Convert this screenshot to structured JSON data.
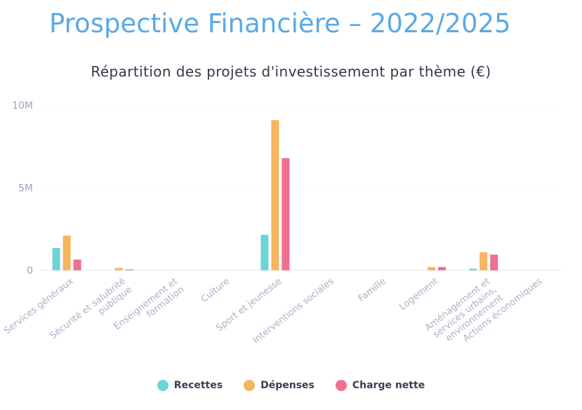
{
  "page": {
    "title": "Prospective Financière – 2022/2025"
  },
  "colors": {
    "Recettes": "#6bd4d6",
    "Dépenses": "#f7b55e",
    "Charge nette": "#f0708f"
  },
  "chart_data": {
    "type": "bar",
    "title": "Répartition des projets d'investissement par thème (€)",
    "xlabel": "",
    "ylabel": "",
    "ylim": [
      0,
      10000000
    ],
    "y_ticks": [
      {
        "value": 0,
        "label": "0"
      },
      {
        "value": 5000000,
        "label": "5M"
      },
      {
        "value": 10000000,
        "label": "10M"
      }
    ],
    "grid": true,
    "legend_position": "bottom",
    "categories": [
      [
        "Services généraux"
      ],
      [
        "Sécurité et salubrité",
        "publique"
      ],
      [
        "Enseignement et",
        "formation"
      ],
      [
        "Culture"
      ],
      [
        "Sport et jeunesse"
      ],
      [
        "Interventions sociales"
      ],
      [
        "Famille"
      ],
      [
        "Logement"
      ],
      [
        "Aménagement et",
        "services urbains,",
        "environnement"
      ],
      [
        "Actions économiques"
      ]
    ],
    "series": [
      {
        "name": "Recettes",
        "values": [
          1350000,
          0,
          0,
          0,
          2150000,
          0,
          0,
          0,
          100000,
          0
        ]
      },
      {
        "name": "Dépenses",
        "values": [
          2100000,
          150000,
          0,
          0,
          9100000,
          0,
          0,
          200000,
          1100000,
          0
        ]
      },
      {
        "name": "Charge nette",
        "values": [
          650000,
          50000,
          0,
          0,
          6800000,
          0,
          0,
          200000,
          950000,
          0
        ]
      }
    ]
  }
}
